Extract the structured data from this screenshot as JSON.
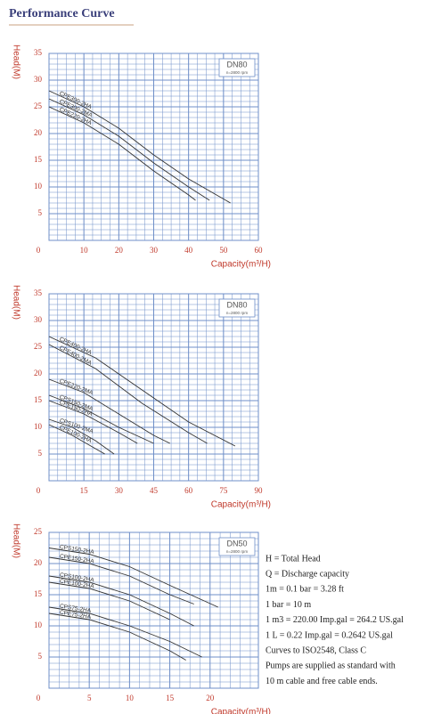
{
  "title": "Performance Curve",
  "chart_data": [
    {
      "type": "line",
      "ylabel": "Head(M)",
      "xlabel": "Capacity(m³/H)",
      "label": "DN80",
      "subtitle": "n=2800 rpm",
      "xlim": [
        0,
        60
      ],
      "xticks": [
        0,
        10,
        20,
        30,
        40,
        50,
        60
      ],
      "ylim": [
        0,
        35
      ],
      "yticks": [
        5,
        10,
        15,
        20,
        25,
        30,
        35
      ],
      "grid": true,
      "series": [
        {
          "name": "CPE300-2HA",
          "color": "#333333",
          "x": [
            0,
            10,
            20,
            30,
            40,
            52
          ],
          "values": [
            28,
            25,
            21,
            16,
            11.5,
            7
          ]
        },
        {
          "name": "CPE300-2MA",
          "color": "#333333",
          "x": [
            0,
            10,
            20,
            30,
            40,
            46
          ],
          "values": [
            26.5,
            23.5,
            19.5,
            14.5,
            10,
            7.5
          ]
        },
        {
          "name": "CPE220-2HA",
          "color": "#333333",
          "x": [
            0,
            10,
            20,
            30,
            40,
            42
          ],
          "values": [
            25,
            22,
            18,
            13,
            8.5,
            7.5
          ]
        }
      ]
    },
    {
      "type": "line",
      "ylabel": "Head(M)",
      "xlabel": "Capacity(m³/H)",
      "label": "DN80",
      "subtitle": "n=2800 rpm",
      "xlim": [
        0,
        90
      ],
      "xticks": [
        0,
        15,
        30,
        45,
        60,
        75,
        90
      ],
      "ylim": [
        0,
        35
      ],
      "yticks": [
        5,
        10,
        15,
        20,
        25,
        30,
        35
      ],
      "grid": true,
      "series": [
        {
          "name": "CPE400-2HA",
          "color": "#333333",
          "x": [
            0,
            20,
            40,
            60,
            80
          ],
          "values": [
            27,
            23,
            17,
            11,
            6.5
          ]
        },
        {
          "name": "CPE400-2MA",
          "color": "#333333",
          "x": [
            0,
            20,
            40,
            60,
            68
          ],
          "values": [
            25.5,
            21,
            14.5,
            9,
            7
          ]
        },
        {
          "name": "CPE220-2MA",
          "color": "#333333",
          "x": [
            0,
            15,
            30,
            45,
            52
          ],
          "values": [
            19,
            16.5,
            12.5,
            8.5,
            7
          ]
        },
        {
          "name": "CPS150-2MA",
          "color": "#333333",
          "x": [
            0,
            15,
            30,
            45
          ],
          "values": [
            16,
            13.5,
            10,
            7
          ]
        },
        {
          "name": "CPE150-2HA",
          "color": "#333333",
          "x": [
            0,
            15,
            30,
            38
          ],
          "values": [
            15,
            12.5,
            9,
            7
          ]
        },
        {
          "name": "CPS100-2MA",
          "color": "#333333",
          "x": [
            0,
            10,
            20,
            28
          ],
          "values": [
            11.5,
            10,
            7.5,
            5
          ]
        },
        {
          "name": "CPE100-2HA",
          "color": "#333333",
          "x": [
            0,
            10,
            20,
            24
          ],
          "values": [
            10.5,
            8.5,
            6,
            5
          ]
        }
      ]
    },
    {
      "type": "line",
      "ylabel": "Head(M)",
      "xlabel": "Capacity(m³/H)",
      "label": "DN50",
      "subtitle": "n=2800 rpm",
      "xlim": [
        0,
        26
      ],
      "xticks": [
        0,
        5,
        10,
        15,
        20
      ],
      "ylim": [
        0,
        25
      ],
      "yticks": [
        5,
        10,
        15,
        20,
        25
      ],
      "grid": true,
      "series": [
        {
          "name": "CPS150-2HA",
          "color": "#333333",
          "x": [
            0,
            5,
            10,
            15,
            21
          ],
          "values": [
            22.5,
            21.5,
            19.5,
            16.5,
            13
          ]
        },
        {
          "name": "CPE150-2HA",
          "color": "#333333",
          "x": [
            0,
            5,
            10,
            15,
            18
          ],
          "values": [
            21,
            20,
            18,
            15,
            13.5
          ]
        },
        {
          "name": "CPS100-2HA",
          "color": "#333333",
          "x": [
            0,
            5,
            10,
            15,
            18
          ],
          "values": [
            18,
            17,
            15,
            12,
            10
          ]
        },
        {
          "name": "CPE100-2HA",
          "color": "#333333",
          "x": [
            0,
            5,
            10,
            15
          ],
          "values": [
            17,
            16,
            14,
            11
          ]
        },
        {
          "name": "CPS75-2HA",
          "color": "#333333",
          "x": [
            0,
            5,
            10,
            15,
            19
          ],
          "values": [
            13,
            12,
            10,
            7.5,
            5
          ]
        },
        {
          "name": "CPE75-2HA",
          "color": "#333333",
          "x": [
            0,
            5,
            10,
            15,
            17
          ],
          "values": [
            12,
            11,
            9,
            6,
            4.5
          ]
        }
      ]
    }
  ],
  "notes": [
    "H = Total Head",
    "Q = Discharge capacity",
    "1m = 0.1 bar = 3.28 ft",
    "1 bar = 10 m",
    "1 m3 = 220.00 Imp.gal = 264.2 US.gal",
    "1 L = 0.22 Imp.gal = 0.2642 US.gal",
    "Curves to ISO2548, Class C",
    "Pumps are supplied as standard with",
    "10 m cable and free cable ends."
  ]
}
